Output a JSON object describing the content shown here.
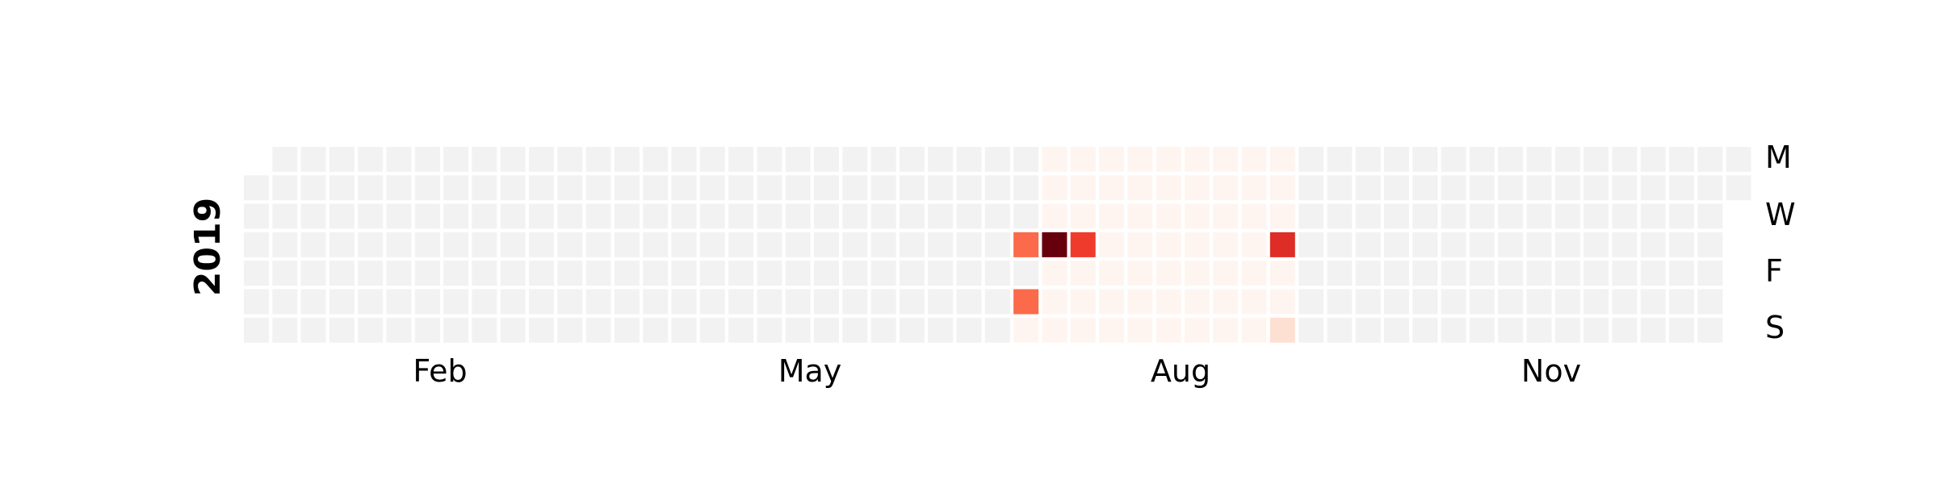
{
  "chart_data": {
    "type": "heatmap",
    "title": "",
    "year": "2019",
    "start_date": "2019-01-01",
    "end_date": "2019-12-31",
    "month_labels": [
      "Feb",
      "May",
      "Aug",
      "Nov"
    ],
    "day_labels": [
      "M",
      "W",
      "F",
      "S"
    ],
    "colors": {
      "empty": "#f2f2f2",
      "scale": [
        "#fff5f0",
        "#fee0d2",
        "#fcbba1",
        "#fc9272",
        "#fb6a4a",
        "#ef3b2c",
        "#cb181d",
        "#a50f15",
        "#67000d"
      ]
    },
    "active_range": {
      "start": "2019-07-13",
      "end": "2019-09-15",
      "default_color": "#fff5f0"
    },
    "highlighted_days": [
      {
        "date": "2019-07-11",
        "color": "#fb6a4a"
      },
      {
        "date": "2019-07-13",
        "color": "#fb6a4a"
      },
      {
        "date": "2019-07-14",
        "color": "#fff5f0"
      },
      {
        "date": "2019-07-18",
        "color": "#67000d"
      },
      {
        "date": "2019-07-25",
        "color": "#ef3b2c"
      },
      {
        "date": "2019-09-12",
        "color": "#de2d26"
      },
      {
        "date": "2019-09-15",
        "color": "#fee0d2"
      }
    ]
  }
}
